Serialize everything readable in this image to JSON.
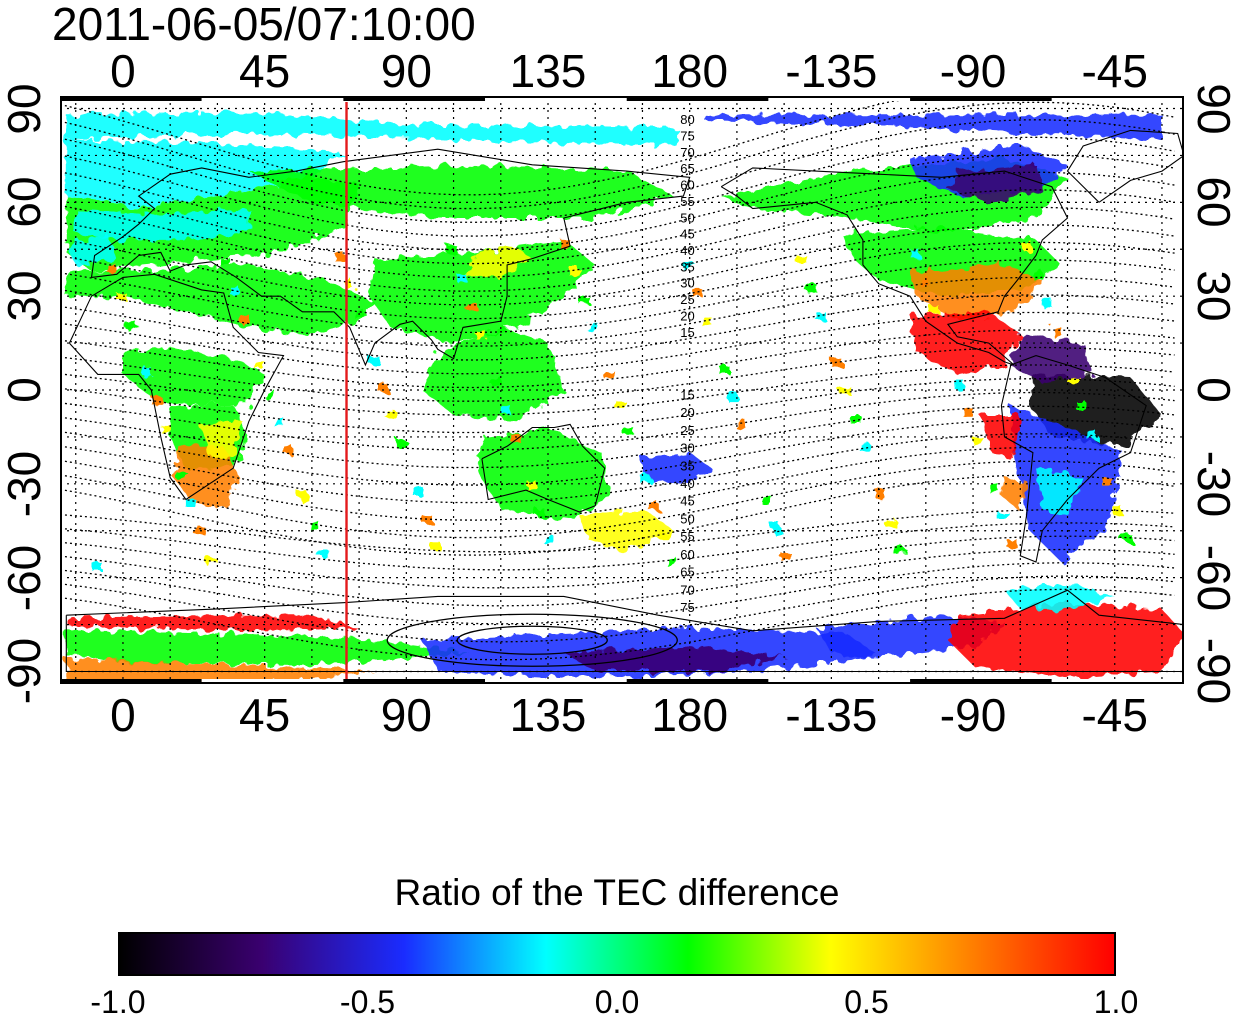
{
  "timestamp": "2011-06-05/07:10:00",
  "map": {
    "top_lon_ticks": [
      "0",
      "45",
      "90",
      "135",
      "180",
      "-135",
      "-90",
      "-45"
    ],
    "bottom_lon_ticks": [
      "0",
      "45",
      "90",
      "135",
      "180",
      "-135",
      "-90",
      "-45"
    ],
    "left_lat_ticks": [
      "90",
      "60",
      "30",
      "0",
      "-30",
      "-60",
      "-90"
    ],
    "right_lat_ticks": [
      "90",
      "60",
      "30",
      "0",
      "-30",
      "-60",
      "-90"
    ],
    "lon_range": [
      -20,
      337
    ],
    "lat_range": [
      -94,
      94
    ],
    "grid": "dotted",
    "marker_line_lon": 71,
    "marker_line_color": "#e41a1c",
    "contour_labels_north": [
      "80",
      "75",
      "70",
      "65",
      "60",
      "55",
      "50",
      "45",
      "40",
      "35",
      "30",
      "25",
      "20",
      "15"
    ],
    "contour_labels_south": [
      "15",
      "20",
      "25",
      "30",
      "35",
      "40",
      "45",
      "50",
      "55",
      "60",
      "65",
      "70",
      "75"
    ]
  },
  "colorbar": {
    "title": "Ratio of the TEC difference",
    "ticks": [
      "-1.0",
      "-0.5",
      "0.0",
      "0.5",
      "1.0"
    ],
    "range": [
      -1.0,
      1.0
    ],
    "colors": [
      "#000000",
      "#3a0070",
      "#1a2cff",
      "#00ffff",
      "#00ff00",
      "#ffff00",
      "#ff7f00",
      "#ff0000"
    ]
  }
}
